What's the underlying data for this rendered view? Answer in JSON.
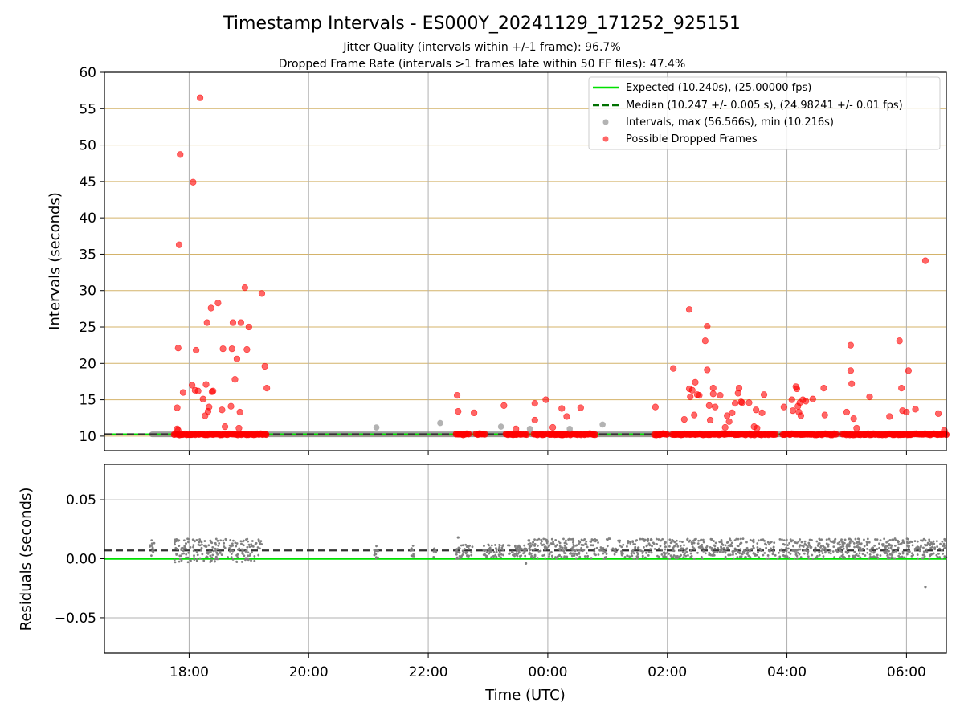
{
  "figure": {
    "title": "Timestamp Intervals - ES000Y_20241129_171252_925151",
    "subtitle1": "Jitter Quality (intervals within +/-1 frame): 96.7%",
    "subtitle2": "Dropped Frame Rate (intervals >1 frames late within 50 FF files): 47.4%"
  },
  "colors": {
    "expected": "#00e000",
    "median": "#007000",
    "intervals": "#808080",
    "dropped": "#ff0000",
    "hgrid_top": "#d4b36a",
    "grid": "#b0b0b0"
  },
  "chart_data": [
    {
      "type": "scatter",
      "ylabel": "Intervals (seconds)",
      "xlim": [
        "16:35",
        "06:40"
      ],
      "ylim": [
        8,
        60
      ],
      "yticks": [
        10,
        15,
        20,
        25,
        30,
        35,
        40,
        45,
        50,
        55,
        60
      ],
      "grid": true,
      "legend_position": "upper right",
      "lines": [
        {
          "name": "Expected (10.240s), (25.00000 fps)",
          "value": 10.24,
          "style": "solid",
          "color": "#00e000"
        },
        {
          "name": "Median (10.247 +/- 0.005 s), (24.98241 +/- 0.01 fps)",
          "value": 10.247,
          "style": "dashed",
          "color": "#007000"
        }
      ],
      "series": [
        {
          "name": "Intervals, max (56.566s), min (10.216s)",
          "color": "#808080",
          "points": [
            [
              "21:08",
              11.2
            ],
            [
              "22:12",
              11.8
            ],
            [
              "23:13",
              11.3
            ],
            [
              "23:42",
              11.0
            ],
            [
              "00:22",
              11.0
            ],
            [
              "00:55",
              11.6
            ]
          ],
          "bands": [
            [
              "17:20",
              "17:45",
              10.25
            ],
            [
              "19:10",
              "23:40",
              10.25
            ],
            [
              "23:40",
              "06:40",
              10.25
            ]
          ]
        },
        {
          "name": "Possible Dropped Frames",
          "color": "#ff0000",
          "points": [
            [
              "17:48",
              13.9
            ],
            [
              "17:49",
              22.1
            ],
            [
              "17:50",
              36.3
            ],
            [
              "17:51",
              48.7
            ],
            [
              "17:54",
              16.0
            ],
            [
              "17:48",
              11.0
            ],
            [
              "17:49",
              10.8
            ],
            [
              "18:03",
              17.0
            ],
            [
              "18:04",
              44.9
            ],
            [
              "18:06",
              16.3
            ],
            [
              "18:07",
              21.8
            ],
            [
              "18:09",
              16.2
            ],
            [
              "18:11",
              56.5
            ],
            [
              "18:14",
              15.1
            ],
            [
              "18:16",
              12.8
            ],
            [
              "18:17",
              17.1
            ],
            [
              "18:18",
              25.6
            ],
            [
              "18:19",
              13.4
            ],
            [
              "18:20",
              14.0
            ],
            [
              "18:22",
              27.6
            ],
            [
              "18:23",
              16.1
            ],
            [
              "18:24",
              16.2
            ],
            [
              "18:29",
              28.3
            ],
            [
              "18:33",
              13.6
            ],
            [
              "18:34",
              22.0
            ],
            [
              "18:36",
              11.3
            ],
            [
              "18:42",
              14.1
            ],
            [
              "18:43",
              22.0
            ],
            [
              "18:44",
              25.6
            ],
            [
              "18:46",
              17.8
            ],
            [
              "18:48",
              20.6
            ],
            [
              "18:50",
              11.1
            ],
            [
              "18:51",
              13.3
            ],
            [
              "18:52",
              25.6
            ],
            [
              "18:56",
              30.4
            ],
            [
              "18:58",
              21.9
            ],
            [
              "19:00",
              25.0
            ],
            [
              "19:13",
              29.6
            ],
            [
              "19:16",
              19.6
            ],
            [
              "19:18",
              16.6
            ],
            [
              "22:29",
              15.6
            ],
            [
              "22:30",
              13.4
            ],
            [
              "22:46",
              13.2
            ],
            [
              "23:16",
              14.2
            ],
            [
              "23:28",
              11.0
            ],
            [
              "23:47",
              14.5
            ],
            [
              "23:47",
              12.2
            ],
            [
              "23:58",
              15.0
            ],
            [
              "00:05",
              11.2
            ],
            [
              "00:14",
              13.8
            ],
            [
              "00:19",
              12.7
            ],
            [
              "00:33",
              13.9
            ],
            [
              "01:48",
              14.0
            ],
            [
              "02:06",
              19.3
            ],
            [
              "02:17",
              12.3
            ],
            [
              "02:22",
              27.4
            ],
            [
              "02:22",
              16.5
            ],
            [
              "02:23",
              15.4
            ],
            [
              "02:25",
              16.3
            ],
            [
              "02:27",
              12.9
            ],
            [
              "02:28",
              17.4
            ],
            [
              "02:30",
              15.7
            ],
            [
              "02:32",
              15.6
            ],
            [
              "02:38",
              23.1
            ],
            [
              "02:40",
              25.1
            ],
            [
              "02:40",
              19.1
            ],
            [
              "02:42",
              14.2
            ],
            [
              "02:43",
              12.2
            ],
            [
              "02:46",
              16.6
            ],
            [
              "02:46",
              15.8
            ],
            [
              "02:48",
              14.0
            ],
            [
              "02:53",
              15.6
            ],
            [
              "02:58",
              11.2
            ],
            [
              "03:00",
              12.8
            ],
            [
              "03:02",
              12.0
            ],
            [
              "03:05",
              13.2
            ],
            [
              "03:08",
              14.5
            ],
            [
              "03:11",
              15.9
            ],
            [
              "03:12",
              16.6
            ],
            [
              "03:14",
              14.7
            ],
            [
              "03:15",
              14.6
            ],
            [
              "03:22",
              14.6
            ],
            [
              "03:27",
              11.3
            ],
            [
              "03:29",
              13.6
            ],
            [
              "03:30",
              11.1
            ],
            [
              "03:35",
              13.2
            ],
            [
              "03:37",
              15.7
            ],
            [
              "03:57",
              14.0
            ],
            [
              "04:05",
              15.0
            ],
            [
              "04:06",
              13.5
            ],
            [
              "04:09",
              16.8
            ],
            [
              "04:10",
              16.5
            ],
            [
              "04:11",
              14.1
            ],
            [
              "04:12",
              13.3
            ],
            [
              "04:13",
              14.6
            ],
            [
              "04:14",
              12.8
            ],
            [
              "04:16",
              15.0
            ],
            [
              "04:19",
              14.8
            ],
            [
              "04:26",
              15.1
            ],
            [
              "04:37",
              16.6
            ],
            [
              "04:38",
              12.9
            ],
            [
              "05:00",
              13.3
            ],
            [
              "05:04",
              22.5
            ],
            [
              "05:04",
              19.0
            ],
            [
              "05:05",
              17.2
            ],
            [
              "05:07",
              12.4
            ],
            [
              "05:10",
              11.1
            ],
            [
              "05:23",
              15.4
            ],
            [
              "05:43",
              12.7
            ],
            [
              "05:53",
              23.1
            ],
            [
              "05:55",
              16.6
            ],
            [
              "05:56",
              13.5
            ],
            [
              "06:00",
              13.3
            ],
            [
              "06:02",
              19.0
            ],
            [
              "06:09",
              13.7
            ],
            [
              "06:19",
              34.1
            ],
            [
              "06:32",
              13.1
            ],
            [
              "06:38",
              10.8
            ]
          ],
          "bands": [
            [
              "17:45",
              "19:18",
              10.25
            ],
            [
              "22:28",
              "22:42",
              10.25
            ],
            [
              "22:48",
              "22:58",
              10.25
            ],
            [
              "23:18",
              "23:35",
              10.25
            ],
            [
              "23:37",
              "23:40",
              10.25
            ],
            [
              "23:46",
              "23:58",
              10.25
            ],
            [
              "24:00",
              "24:18",
              10.25
            ],
            [
              "24:12",
              "24:48",
              10.25
            ],
            [
              "25:47",
              "26:00",
              10.25
            ],
            [
              "26:05",
              "26:30",
              10.25
            ],
            [
              "26:27",
              "27:50",
              10.25
            ],
            [
              "27:56",
              "28:50",
              10.25
            ],
            [
              "28:56",
              "29:20",
              10.25
            ],
            [
              "29:18",
              "29:52",
              10.25
            ],
            [
              "29:52",
              "30:40",
              10.25
            ]
          ]
        }
      ]
    },
    {
      "type": "scatter",
      "xlabel": "Time (UTC)",
      "ylabel": "Residuals (seconds)",
      "xlim": [
        "16:35",
        "06:40"
      ],
      "ylim": [
        -0.08,
        0.08
      ],
      "yticks": [
        -0.05,
        0.0,
        0.05
      ],
      "ytick_labels": [
        "−0.05",
        "0.00",
        "0.05"
      ],
      "xticks": [
        "18:00",
        "20:00",
        "22:00",
        "00:00",
        "02:00",
        "04:00",
        "06:00"
      ],
      "grid": true,
      "lines": [
        {
          "name": "Expected",
          "value": 0.0,
          "style": "solid",
          "color": "#00e000"
        },
        {
          "name": "Median",
          "value": 0.007,
          "style": "dashed",
          "color": "#007000"
        }
      ],
      "series": [
        {
          "name": "Residuals",
          "color": "#808080",
          "clusters": [
            [
              "17:20",
              "17:25",
              0.002,
              0.016
            ],
            [
              "17:45",
              "19:13",
              -0.003,
              0.017
            ],
            [
              "21:05",
              "21:10",
              0.0,
              0.012
            ],
            [
              "21:42",
              "21:46",
              0.002,
              0.012
            ],
            [
              "22:05",
              "22:08",
              0.001,
              0.01
            ],
            [
              "22:28",
              "22:45",
              0.0,
              0.012
            ],
            [
              "22:55",
              "23:16",
              0.001,
              0.012
            ],
            [
              "23:20",
              "23:40",
              0.002,
              0.012
            ],
            [
              "23:40",
              "06:40",
              0.0,
              0.017
            ]
          ],
          "outliers": [
            [
              "23:38",
              -0.004
            ],
            [
              "06:19",
              -0.024
            ],
            [
              "22:30",
              0.018
            ]
          ]
        }
      ]
    }
  ]
}
